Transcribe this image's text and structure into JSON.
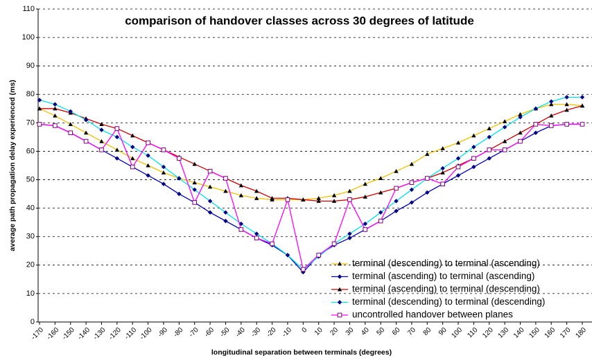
{
  "chart_data": {
    "type": "line",
    "title": "comparison of handover classes across 30 degrees of latitude",
    "xlabel": "longitudinal separation between terminals (degrees)",
    "ylabel": "average path propagation delay experienced (ms)",
    "x": [
      -170,
      -160,
      -150,
      -140,
      -130,
      -120,
      -110,
      -100,
      -90,
      -80,
      -70,
      -60,
      -50,
      -40,
      -30,
      -20,
      -10,
      0,
      10,
      20,
      30,
      40,
      50,
      60,
      70,
      80,
      90,
      100,
      110,
      120,
      130,
      140,
      150,
      160,
      170,
      180
    ],
    "xlim": [
      -170,
      180
    ],
    "xticks": [
      -170,
      -160,
      -150,
      -140,
      -130,
      -120,
      -110,
      -100,
      -90,
      -80,
      -70,
      -60,
      -50,
      -40,
      -30,
      -20,
      -10,
      0,
      10,
      20,
      30,
      40,
      50,
      60,
      70,
      80,
      90,
      100,
      110,
      120,
      130,
      140,
      150,
      160,
      170,
      180
    ],
    "ylim": [
      0,
      110
    ],
    "yticks": [
      0,
      10,
      20,
      30,
      40,
      50,
      60,
      70,
      80,
      90,
      100,
      110
    ],
    "grid": true,
    "legend": "lower right",
    "series": [
      {
        "name": "terminal (descending) to terminal (ascending)",
        "color": "#f0c000",
        "marker": "triangle",
        "values": [
          75,
          72.5,
          69.5,
          66.5,
          63.5,
          60.5,
          57.5,
          55,
          52.5,
          50.5,
          49,
          47.5,
          46,
          44.5,
          43.5,
          43,
          43,
          43,
          43.5,
          44.5,
          46,
          48.5,
          50.5,
          53,
          55.5,
          59,
          61,
          63,
          65.5,
          68,
          70.5,
          73,
          75,
          76.5,
          76.5,
          76
        ]
      },
      {
        "name": "terminal (ascending) to terminal (ascending)",
        "color": "#0000c0",
        "marker": "diamond",
        "values": [
          69.5,
          69,
          66.5,
          63.5,
          60.5,
          57.5,
          54.5,
          51.5,
          48.5,
          45,
          42,
          38.5,
          35.5,
          32.5,
          29.5,
          27,
          23.5,
          17.5,
          23.5,
          27,
          29.5,
          32.5,
          35.5,
          39,
          42,
          45.5,
          48.5,
          51.5,
          54.5,
          57.5,
          60.5,
          63.5,
          66.5,
          69,
          69.5,
          69.5
        ]
      },
      {
        "name": "terminal (ascending) to terminal (descending)",
        "color": "#d00000",
        "marker": "triangle",
        "values": [
          75,
          75,
          73.5,
          71.5,
          69.5,
          68,
          65.5,
          63,
          60.5,
          58,
          55.5,
          53,
          50.5,
          48,
          46,
          43.5,
          43.5,
          43,
          42.5,
          42.5,
          43,
          44,
          45.5,
          47,
          49,
          50.5,
          52.5,
          55,
          57.5,
          60.5,
          63.5,
          66.5,
          69.5,
          72.5,
          74.5,
          76
        ]
      },
      {
        "name": "terminal (descending) to terminal (descending)",
        "color": "#00e0f0",
        "marker": "diamond",
        "values": [
          78,
          76.5,
          74,
          71,
          67.5,
          65,
          61.5,
          58.5,
          54.5,
          50.5,
          46.5,
          42.5,
          38.5,
          34.5,
          31,
          27.5,
          23.5,
          18.5,
          23,
          27.5,
          31,
          34.5,
          38.5,
          42.5,
          46.5,
          50.5,
          54,
          57.5,
          61.5,
          65,
          68.5,
          72,
          75,
          77.5,
          79,
          79
        ]
      },
      {
        "name": "uncontrolled handover between planes",
        "color": "#ff00ff",
        "marker": "square",
        "values": [
          69.5,
          69,
          66.5,
          63.5,
          60.5,
          68,
          54.5,
          63,
          60.5,
          57.5,
          42,
          53,
          50.5,
          32.5,
          29.5,
          27.5,
          43,
          18.5,
          23.5,
          27.5,
          43,
          32.5,
          35.5,
          47,
          49,
          50.5,
          48.5,
          54.5,
          57.5,
          60.5,
          60.5,
          63.5,
          69.5,
          69,
          69.5,
          69.5
        ]
      }
    ]
  }
}
